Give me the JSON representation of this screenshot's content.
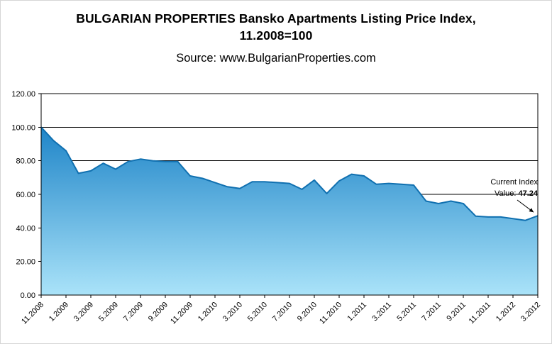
{
  "header": {
    "title_lines": [
      "BULGARIAN PROPERTIES Bansko Apartments Listing Price Index,",
      "11.2008=100"
    ],
    "source": "Source: www.BulgarianProperties.com"
  },
  "chart_data": {
    "type": "area",
    "title": "BULGARIAN PROPERTIES Bansko Apartments Listing Price Index, 11.2008=100",
    "source": "Source: www.BulgarianProperties.com",
    "x_tick_labels": [
      "11.2008",
      "1.2009",
      "3.2009",
      "5.2009",
      "7.2009",
      "9.2009",
      "11.2009",
      "1.2010",
      "3.2010",
      "5.2010",
      "7.2010",
      "9.2010",
      "11.2010",
      "1.2011",
      "3.2011",
      "5.2011",
      "7.2011",
      "9.2011",
      "11.2011",
      "1.2012",
      "3.2012"
    ],
    "values": [
      100,
      92,
      86,
      72.5,
      74,
      78.5,
      75,
      79.5,
      81,
      80,
      79.5,
      79.5,
      71,
      69.5,
      67,
      64.5,
      63.5,
      67.5,
      67.5,
      67,
      66.5,
      63,
      68.5,
      60.5,
      68,
      72,
      71,
      66,
      66.5,
      66,
      65.5,
      56,
      54.5,
      56,
      54.5,
      47,
      46.5,
      46.5,
      45.5,
      44.5,
      47.24
    ],
    "ylim": [
      0,
      120
    ],
    "y_ticks": [
      "0.00",
      "20.00",
      "40.00",
      "60.00",
      "80.00",
      "100.00",
      "120.00"
    ],
    "grid": true,
    "legend": "none",
    "annotation": {
      "line1": "Current Index",
      "line2_label": "Value: ",
      "value": "47.24"
    },
    "colors": {
      "area_top": "#1f85c8",
      "area_bottom": "#aae3f9",
      "line": "#1070b0",
      "grid": "#000000",
      "frame": "#000000"
    }
  }
}
